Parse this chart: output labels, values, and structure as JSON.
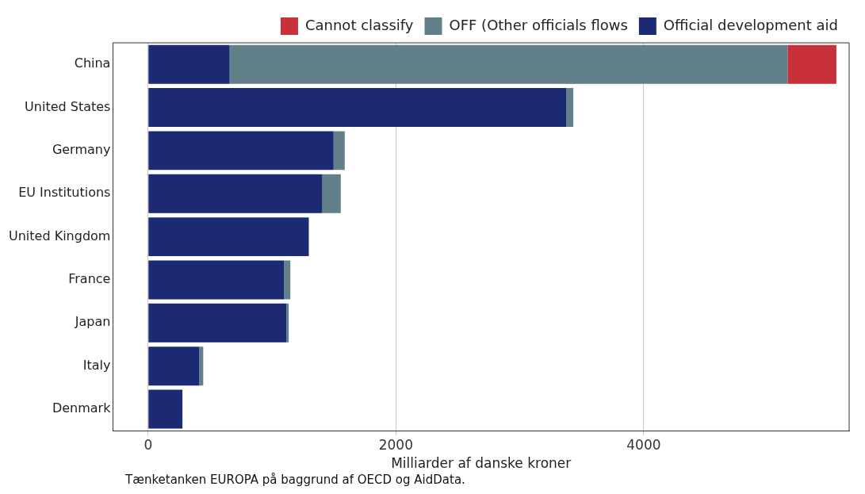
{
  "chart_data": {
    "type": "bar",
    "orientation": "horizontal",
    "stacked": true,
    "categories": [
      "China",
      "United States",
      "Germany",
      "EU Institutions",
      "United Kingdom",
      "France",
      "Japan",
      "Italy",
      "Denmark"
    ],
    "series": [
      {
        "name": "Official development aid",
        "color": "#1c2a74",
        "values": [
          658,
          3374,
          1497,
          1406,
          1297,
          1097,
          1116,
          413,
          277
        ]
      },
      {
        "name": "OFF (Other officials flows",
        "color": "#62808a",
        "values": [
          4503,
          58,
          90,
          149,
          0,
          51,
          19,
          32,
          0
        ]
      },
      {
        "name": "Cannot classify",
        "color": "#c8303a",
        "values": [
          394,
          0,
          0,
          0,
          0,
          0,
          0,
          0,
          0
        ]
      }
    ],
    "xlim": [
      -284,
      5658
    ],
    "xticks": [
      0,
      2000,
      4000
    ],
    "grid": "x",
    "legend": "top right",
    "xlabel": "Milliarder af danske kroner",
    "annotations": [
      "Tænketanken EUROPA på baggrund af OECD og AidData."
    ]
  }
}
